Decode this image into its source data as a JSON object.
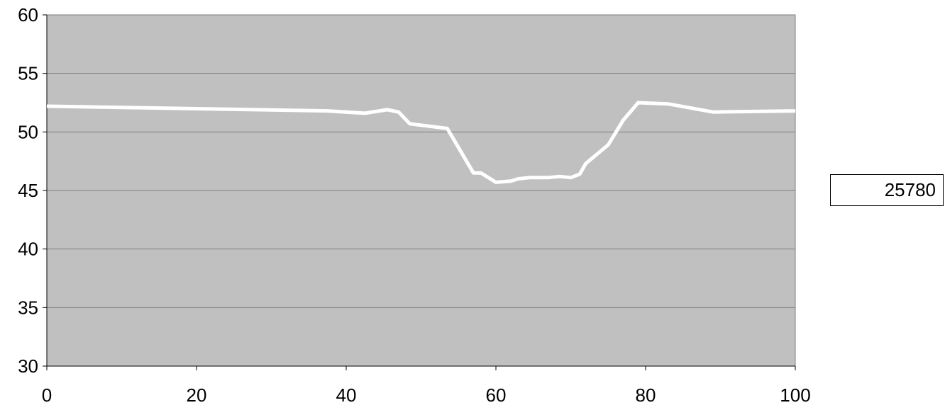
{
  "chart_data": {
    "type": "line",
    "title": "",
    "xlabel": "",
    "ylabel": "",
    "xlim": [
      0,
      100
    ],
    "ylim": [
      30,
      60
    ],
    "x_ticks": [
      0,
      20,
      40,
      60,
      80,
      100
    ],
    "y_ticks": [
      30,
      35,
      40,
      45,
      50,
      55,
      60
    ],
    "grid": true,
    "plot_background": "#c0c0c0",
    "line_color": "#ffffff",
    "legend": {
      "placement": "right",
      "entries": [
        "25780"
      ]
    },
    "series": [
      {
        "name": "25780",
        "x": [
          0,
          37.5,
          42.5,
          45.5,
          47,
          48.5,
          53.5,
          57,
          58,
          60,
          62,
          63,
          64.5,
          67,
          68.5,
          70,
          71.2,
          72,
          75,
          77,
          79,
          83,
          89,
          100
        ],
        "y": [
          52.2,
          51.8,
          51.6,
          51.9,
          51.7,
          50.7,
          50.3,
          46.5,
          46.5,
          45.7,
          45.8,
          46.0,
          46.1,
          46.1,
          46.2,
          46.1,
          46.4,
          47.3,
          48.9,
          51.0,
          52.5,
          52.4,
          51.7,
          51.8
        ]
      }
    ]
  }
}
